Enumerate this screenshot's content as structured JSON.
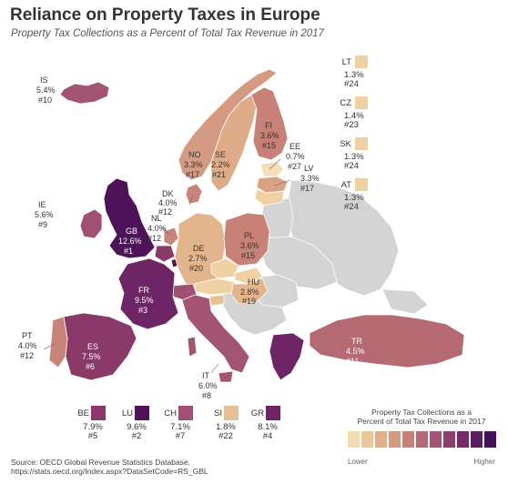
{
  "title": "Reliance on Property Taxes in Europe",
  "subtitle": "Property Tax Collections as a Percent of Total Tax Revenue in 2017",
  "colors": {
    "c1": "#f0d2a2",
    "c2": "#e3b58c",
    "c3": "#d79f80",
    "c4": "#c78176",
    "c5": "#b56a73",
    "c6": "#9f4f6d",
    "c7": "#8a3a69",
    "c8": "#6e2565",
    "c9": "#4d1257",
    "nodata": "#d4d4d4",
    "border": "#ffffff"
  },
  "countries": {
    "IS": {
      "code": "IS",
      "value": "5.4%",
      "rank": "#10"
    },
    "NO": {
      "code": "NO",
      "value": "3.3%",
      "rank": "#17"
    },
    "SE": {
      "code": "SE",
      "value": "2.2%",
      "rank": "#21"
    },
    "FI": {
      "code": "FI",
      "value": "3.6%",
      "rank": "#15"
    },
    "EE": {
      "code": "EE",
      "value": "0.7%",
      "rank": "#27"
    },
    "LV": {
      "code": "LV",
      "value": "3.3%",
      "rank": "#17"
    },
    "DK": {
      "code": "DK",
      "value": "4.0%",
      "rank": "#12"
    },
    "IE": {
      "code": "IE",
      "value": "5.6%",
      "rank": "#9"
    },
    "GB": {
      "code": "GB",
      "value": "12.6%",
      "rank": "#1"
    },
    "NL": {
      "code": "NL",
      "value": "4.0%",
      "rank": "#12"
    },
    "DE": {
      "code": "DE",
      "value": "2.7%",
      "rank": "#20"
    },
    "PL": {
      "code": "PL",
      "value": "3.6%",
      "rank": "#15"
    },
    "HU": {
      "code": "HU",
      "value": "2.8%",
      "rank": "#19"
    },
    "FR": {
      "code": "FR",
      "value": "9.5%",
      "rank": "#3"
    },
    "PT": {
      "code": "PT",
      "value": "4.0%",
      "rank": "#12"
    },
    "ES": {
      "code": "ES",
      "value": "7.5%",
      "rank": "#6"
    },
    "IT": {
      "code": "IT",
      "value": "6.0%",
      "rank": "#8"
    },
    "TR": {
      "code": "TR",
      "value": "4.5%",
      "rank": "#11"
    }
  },
  "side": [
    {
      "code": "LT",
      "value": "1.3%",
      "rank": "#24",
      "color": "#f0d2a2"
    },
    {
      "code": "CZ",
      "value": "1.4%",
      "rank": "#23",
      "color": "#f0d2a2"
    },
    {
      "code": "SK",
      "value": "1.3%",
      "rank": "#24",
      "color": "#f0d2a2"
    },
    {
      "code": "AT",
      "value": "1.3%",
      "rank": "#24",
      "color": "#f0d2a2"
    }
  ],
  "bottom": [
    {
      "code": "BE",
      "value": "7.9%",
      "rank": "#5",
      "color": "#8a3a69"
    },
    {
      "code": "LU",
      "value": "9.6%",
      "rank": "#2",
      "color": "#4d1257"
    },
    {
      "code": "CH",
      "value": "7.1%",
      "rank": "#7",
      "color": "#a14f72"
    },
    {
      "code": "SI",
      "value": "1.8%",
      "rank": "#22",
      "color": "#e8c096"
    },
    {
      "code": "GR",
      "value": "8.1%",
      "rank": "#4",
      "color": "#6e2565"
    }
  ],
  "legend": {
    "title_line1": "Property Tax Collections as a",
    "title_line2": "Percent of Total Tax Revenue in 2017",
    "low": "Lower",
    "high": "Higher",
    "swatches": [
      "#f3dcb4",
      "#ebc79a",
      "#e0b08b",
      "#d59a82",
      "#c7817a",
      "#b56a76",
      "#a25472",
      "#8d3e6d",
      "#762a68",
      "#5e1a62",
      "#45105a"
    ]
  },
  "source": {
    "line1": "Source: OECD Global Revenue Statistics Database,",
    "line2": "https://stats.oecd.org/Index.aspx?DataSetCode=RS_GBL"
  }
}
